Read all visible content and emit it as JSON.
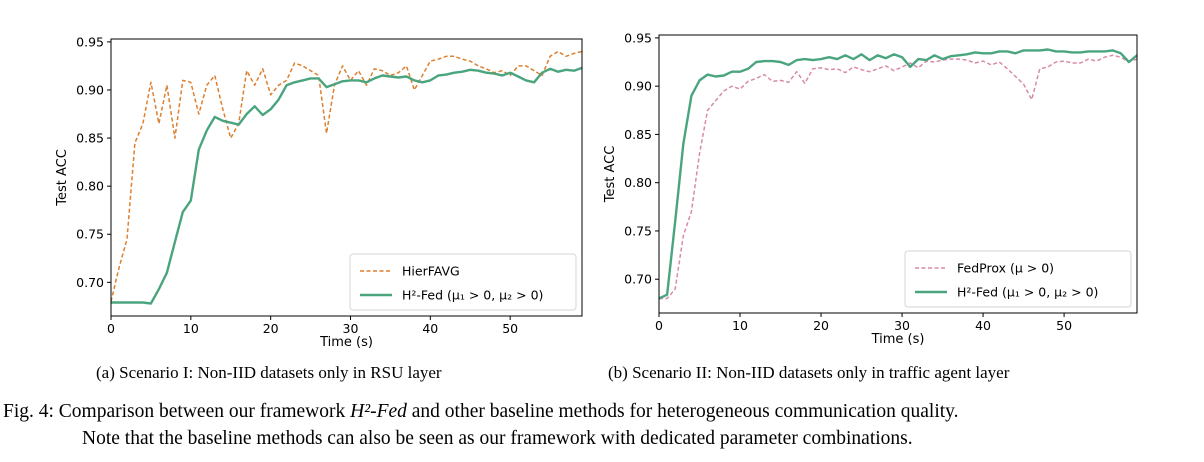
{
  "chart_data": [
    {
      "type": "line",
      "xlabel": "Time (s)",
      "ylabel": "Test ACC",
      "xlim": [
        0,
        59
      ],
      "ylim": [
        0.665,
        0.953
      ],
      "xticks": [
        0,
        10,
        20,
        30,
        40,
        50
      ],
      "yticks": [
        0.7,
        0.75,
        0.8,
        0.85,
        0.9,
        0.95
      ],
      "ytick_labels": [
        "0.70",
        "0.75",
        "0.80",
        "0.85",
        "0.90",
        "0.95"
      ],
      "legend_position": "lower-right",
      "series": [
        {
          "name": "HierFAVG",
          "color": "#dd7f2e",
          "style": "dashed",
          "x": [
            0,
            1,
            2,
            3,
            4,
            5,
            6,
            7,
            8,
            9,
            10,
            11,
            12,
            13,
            14,
            15,
            16,
            17,
            18,
            19,
            20,
            21,
            22,
            23,
            24,
            25,
            26,
            27,
            28,
            29,
            30,
            31,
            32,
            33,
            34,
            35,
            36,
            37,
            38,
            39,
            40,
            41,
            42,
            43,
            44,
            45,
            46,
            47,
            48,
            49,
            50,
            51,
            52,
            53,
            54,
            55,
            56,
            57,
            58,
            59
          ],
          "y": [
            0.68,
            0.715,
            0.745,
            0.845,
            0.865,
            0.908,
            0.865,
            0.905,
            0.85,
            0.91,
            0.908,
            0.875,
            0.905,
            0.915,
            0.88,
            0.85,
            0.865,
            0.92,
            0.905,
            0.922,
            0.895,
            0.905,
            0.91,
            0.928,
            0.925,
            0.92,
            0.915,
            0.855,
            0.905,
            0.925,
            0.91,
            0.92,
            0.905,
            0.922,
            0.92,
            0.915,
            0.918,
            0.925,
            0.9,
            0.915,
            0.93,
            0.932,
            0.935,
            0.935,
            0.932,
            0.93,
            0.925,
            0.922,
            0.918,
            0.92,
            0.915,
            0.925,
            0.925,
            0.92,
            0.915,
            0.935,
            0.94,
            0.935,
            0.938,
            0.94
          ]
        },
        {
          "name": "H²-Fed (μ₁ > 0, μ₂ > 0)",
          "color": "#4aa57e",
          "style": "solid",
          "x": [
            0,
            1,
            2,
            3,
            4,
            5,
            6,
            7,
            8,
            9,
            10,
            11,
            12,
            13,
            14,
            15,
            16,
            17,
            18,
            19,
            20,
            21,
            22,
            23,
            24,
            25,
            26,
            27,
            28,
            29,
            30,
            31,
            32,
            33,
            34,
            35,
            36,
            37,
            38,
            39,
            40,
            41,
            42,
            43,
            44,
            45,
            46,
            47,
            48,
            49,
            50,
            51,
            52,
            53,
            54,
            55,
            56,
            57,
            58,
            59
          ],
          "y": [
            0.679,
            0.679,
            0.679,
            0.679,
            0.679,
            0.678,
            0.693,
            0.71,
            0.742,
            0.773,
            0.785,
            0.838,
            0.858,
            0.872,
            0.868,
            0.866,
            0.864,
            0.875,
            0.883,
            0.874,
            0.88,
            0.89,
            0.905,
            0.908,
            0.91,
            0.912,
            0.912,
            0.903,
            0.906,
            0.909,
            0.91,
            0.91,
            0.908,
            0.912,
            0.915,
            0.914,
            0.913,
            0.914,
            0.91,
            0.908,
            0.91,
            0.915,
            0.916,
            0.918,
            0.919,
            0.921,
            0.92,
            0.918,
            0.917,
            0.915,
            0.918,
            0.914,
            0.91,
            0.908,
            0.918,
            0.922,
            0.919,
            0.921,
            0.92,
            0.923
          ]
        }
      ]
    },
    {
      "type": "line",
      "xlabel": "Time (s)",
      "ylabel": "Test ACC",
      "xlim": [
        0,
        59
      ],
      "ylim": [
        0.665,
        0.953
      ],
      "xticks": [
        0,
        10,
        20,
        30,
        40,
        50
      ],
      "yticks": [
        0.7,
        0.75,
        0.8,
        0.85,
        0.9,
        0.95
      ],
      "ytick_labels": [
        "0.70",
        "0.75",
        "0.80",
        "0.85",
        "0.90",
        "0.95"
      ],
      "legend_position": "lower-right",
      "series": [
        {
          "name": "FedProx (μ > 0)",
          "color": "#d88aa9",
          "style": "dashed",
          "x": [
            0,
            1,
            2,
            3,
            4,
            5,
            6,
            7,
            8,
            9,
            10,
            11,
            12,
            13,
            14,
            15,
            16,
            17,
            18,
            19,
            20,
            21,
            22,
            23,
            24,
            25,
            26,
            27,
            28,
            29,
            30,
            31,
            32,
            33,
            34,
            35,
            36,
            37,
            38,
            39,
            40,
            41,
            42,
            43,
            44,
            45,
            46,
            47,
            48,
            49,
            50,
            51,
            52,
            53,
            54,
            55,
            56,
            57,
            58,
            59
          ],
          "y": [
            0.68,
            0.68,
            0.69,
            0.745,
            0.77,
            0.83,
            0.875,
            0.885,
            0.895,
            0.9,
            0.897,
            0.905,
            0.908,
            0.912,
            0.905,
            0.906,
            0.904,
            0.915,
            0.903,
            0.918,
            0.919,
            0.917,
            0.918,
            0.914,
            0.92,
            0.917,
            0.915,
            0.918,
            0.921,
            0.916,
            0.92,
            0.924,
            0.919,
            0.926,
            0.925,
            0.927,
            0.928,
            0.928,
            0.927,
            0.924,
            0.926,
            0.922,
            0.925,
            0.918,
            0.91,
            0.902,
            0.886,
            0.918,
            0.92,
            0.925,
            0.926,
            0.924,
            0.924,
            0.928,
            0.926,
            0.93,
            0.932,
            0.93,
            0.925,
            0.928
          ]
        },
        {
          "name": "H²-Fed (μ₁ > 0, μ₂ > 0)",
          "color": "#4aa57e",
          "style": "solid",
          "x": [
            0,
            1,
            2,
            3,
            4,
            5,
            6,
            7,
            8,
            9,
            10,
            11,
            12,
            13,
            14,
            15,
            16,
            17,
            18,
            19,
            20,
            21,
            22,
            23,
            24,
            25,
            26,
            27,
            28,
            29,
            30,
            31,
            32,
            33,
            34,
            35,
            36,
            37,
            38,
            39,
            40,
            41,
            42,
            43,
            44,
            45,
            46,
            47,
            48,
            49,
            50,
            51,
            52,
            53,
            54,
            55,
            56,
            57,
            58,
            59
          ],
          "y": [
            0.68,
            0.684,
            0.76,
            0.84,
            0.89,
            0.906,
            0.912,
            0.91,
            0.911,
            0.915,
            0.915,
            0.918,
            0.925,
            0.926,
            0.926,
            0.925,
            0.922,
            0.927,
            0.928,
            0.927,
            0.928,
            0.93,
            0.928,
            0.932,
            0.928,
            0.933,
            0.927,
            0.932,
            0.929,
            0.933,
            0.93,
            0.92,
            0.928,
            0.927,
            0.932,
            0.928,
            0.931,
            0.932,
            0.933,
            0.935,
            0.934,
            0.934,
            0.936,
            0.936,
            0.934,
            0.937,
            0.937,
            0.937,
            0.938,
            0.936,
            0.936,
            0.935,
            0.935,
            0.936,
            0.936,
            0.936,
            0.937,
            0.934,
            0.925,
            0.932
          ]
        }
      ]
    }
  ],
  "captions": {
    "sub_a": "(a) Scenario I: Non-IID datasets only in RSU layer",
    "sub_b": "(b) Scenario II: Non-IID datasets only in traffic agent layer",
    "fig_prefix": "Fig. 4: Comparison between our framework ",
    "fig_name": "H²-Fed",
    "fig_rest": " and other baseline methods for heterogeneous communication quality.",
    "fig_line2": "Note that the baseline methods can also be seen as our framework with dedicated parameter combinations."
  }
}
